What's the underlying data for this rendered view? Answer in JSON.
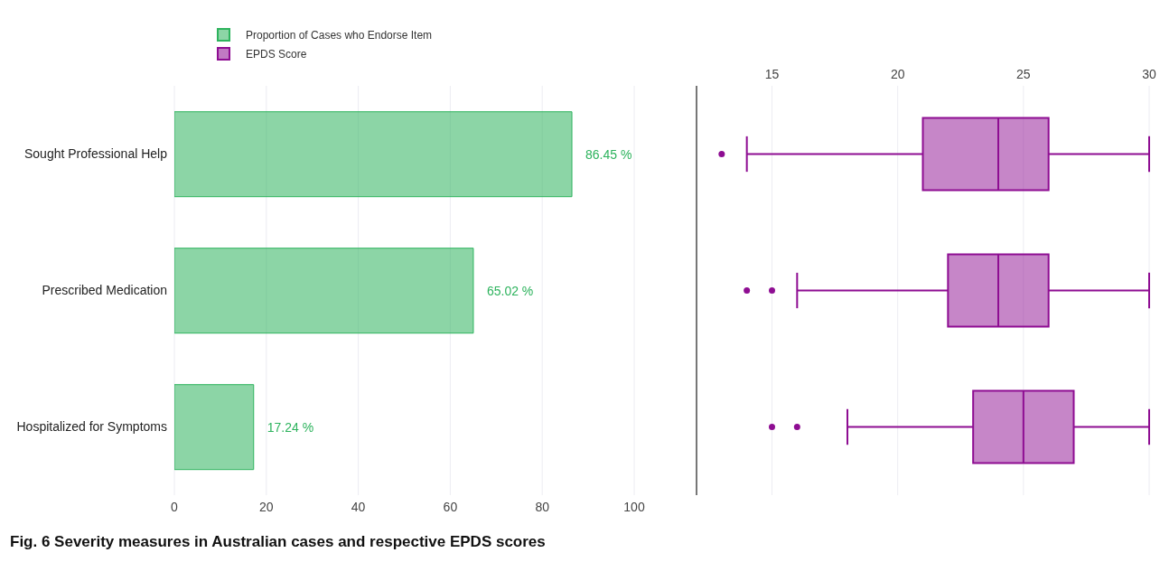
{
  "chart_data": [
    {
      "type": "bar",
      "orientation": "horizontal",
      "title": "Fig. 6 Severity measures in Australian cases and respective EPDS scores",
      "categories": [
        "Sought Professional Help",
        "Prescribed Medication",
        "Hospitalized for Symptoms"
      ],
      "series": [
        {
          "name": "Proportion of Cases who Endorse Item",
          "color": "#2db35d",
          "values": [
            86.45,
            65.02,
            17.24
          ],
          "value_labels": [
            "86.45 %",
            "65.02 %",
            "17.24 %"
          ]
        }
      ],
      "xlim": [
        0,
        100
      ],
      "xticks": [
        0,
        20,
        40,
        60,
        80,
        100
      ],
      "grid": "x",
      "legend": "top left"
    },
    {
      "type": "box",
      "orientation": "horizontal",
      "categories": [
        null,
        null,
        null
      ],
      "tick_labels": "x",
      "series": [
        {
          "name": "EPDS Score",
          "color": "#8e0d92",
          "boxes": [
            {
              "low": 14,
              "q1": 21,
              "median": 24,
              "q3": 26,
              "high": 30,
              "outliers": [
                13
              ]
            },
            {
              "low": 16,
              "q1": 22,
              "median": 24,
              "q3": 26,
              "high": 30,
              "outliers": [
                14,
                15
              ]
            },
            {
              "low": 18,
              "q1": 23,
              "median": 25,
              "q3": 27,
              "high": 30,
              "outliers": [
                15,
                16
              ]
            }
          ]
        }
      ],
      "xlim": [
        12,
        30
      ],
      "xticks": [
        15,
        20,
        25,
        30
      ],
      "grid": "x",
      "legend": "top left"
    }
  ]
}
